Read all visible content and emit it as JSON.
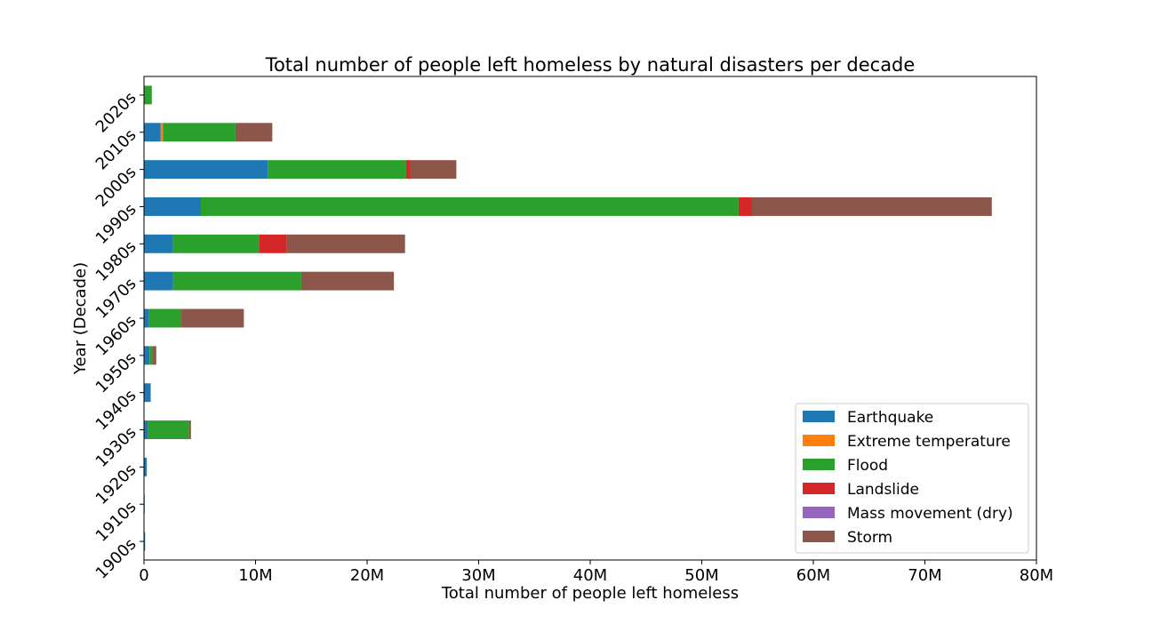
{
  "chart_data": {
    "type": "bar",
    "orientation": "horizontal",
    "stacked": true,
    "title": "Total number of people left homeless by natural disasters per decade",
    "xlabel": "Total number of people left homeless",
    "ylabel": "Year (Decade)",
    "xlim": [
      0,
      80000000
    ],
    "x_ticks": [
      0,
      10000000,
      20000000,
      30000000,
      40000000,
      50000000,
      60000000,
      70000000,
      80000000
    ],
    "x_tick_labels": [
      "0",
      "10M",
      "20M",
      "30M",
      "40M",
      "50M",
      "60M",
      "70M",
      "80M"
    ],
    "grid": false,
    "legend_position": "lower-right",
    "categories": [
      "1900s",
      "1910s",
      "1920s",
      "1930s",
      "1940s",
      "1950s",
      "1960s",
      "1970s",
      "1980s",
      "1990s",
      "2000s",
      "2010s",
      "2020s"
    ],
    "series": [
      {
        "name": "Earthquake",
        "color": "#1f77b4",
        "values": [
          100000,
          50000,
          250000,
          350000,
          600000,
          500000,
          450000,
          2600000,
          2600000,
          5100000,
          11100000,
          1500000,
          0
        ]
      },
      {
        "name": "Extreme temperature",
        "color": "#ff7f0e",
        "values": [
          0,
          0,
          0,
          0,
          0,
          0,
          0,
          0,
          0,
          0,
          0,
          200000,
          0
        ]
      },
      {
        "name": "Flood",
        "color": "#2ca02c",
        "values": [
          0,
          0,
          0,
          3700000,
          0,
          300000,
          2900000,
          11500000,
          7700000,
          48200000,
          12400000,
          6500000,
          700000
        ]
      },
      {
        "name": "Landslide",
        "color": "#d62728",
        "values": [
          0,
          0,
          0,
          100000,
          0,
          0,
          0,
          0,
          2500000,
          1200000,
          400000,
          0,
          0
        ]
      },
      {
        "name": "Mass movement (dry)",
        "color": "#9467bd",
        "values": [
          0,
          0,
          0,
          0,
          0,
          0,
          0,
          0,
          0,
          0,
          0,
          0,
          0
        ]
      },
      {
        "name": "Storm",
        "color": "#8c564b",
        "values": [
          0,
          0,
          0,
          50000,
          0,
          300000,
          5600000,
          8300000,
          10600000,
          21500000,
          4100000,
          3300000,
          0
        ]
      }
    ]
  }
}
